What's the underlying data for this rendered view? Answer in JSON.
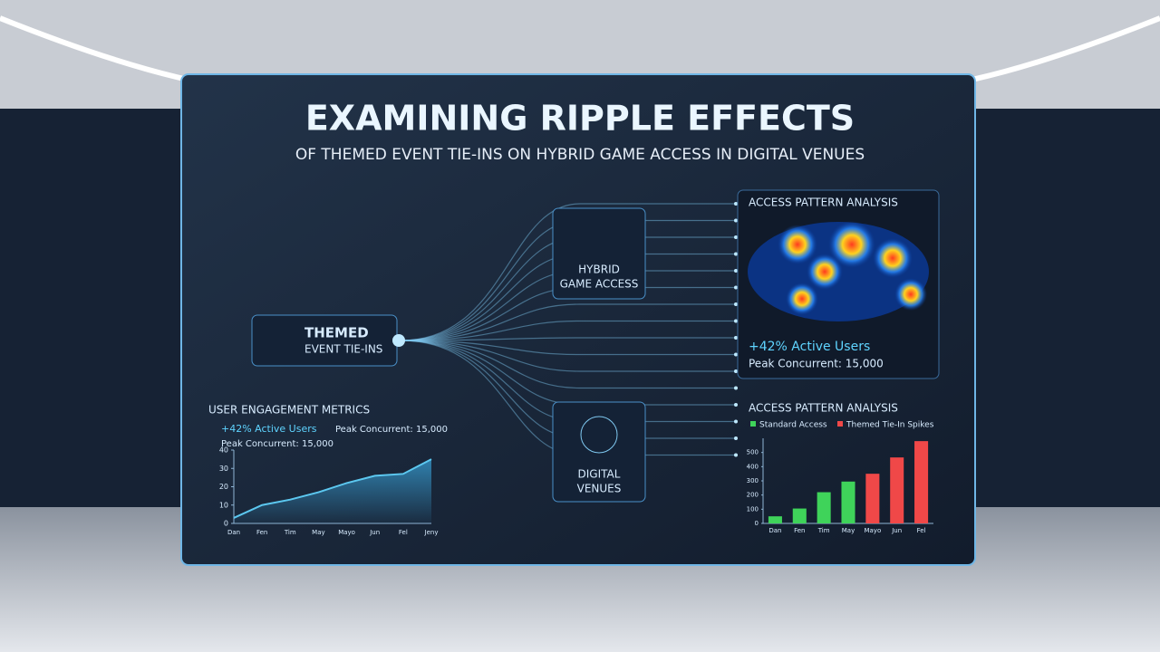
{
  "header": {
    "title": "EXAMINING RIPPLE EFFECTS",
    "subtitle": "OF THEMED EVENT TIE-INS ON HYBRID GAME ACCESS IN DIGITAL VENUES"
  },
  "nodes": [
    {
      "line1": "THEMED",
      "line2": "EVENT TIE-INS"
    },
    {
      "line1": "HYBRID",
      "line2": "GAME ACCESS"
    },
    {
      "line1": "DIGITAL",
      "line2": "VENUES"
    }
  ],
  "heatmap": {
    "title": "ACCESS PATTERN ANALYSIS",
    "stat1": "+42% Active Users",
    "stat2": "Peak Concurrent: 15,000"
  },
  "engagement": {
    "title": "USER ENGAGEMENT METRICS",
    "stat1": "+42% Active Users",
    "stat2": "Peak Concurrent: 15,000",
    "stat3": "Peak Concurrent: 15,000"
  },
  "chart_data": [
    {
      "type": "line",
      "categories": [
        "Dan",
        "Fen",
        "Tim",
        "May",
        "Mayo",
        "Jun",
        "Fel",
        "Jeny"
      ],
      "values": [
        3,
        10,
        13,
        17,
        22,
        26,
        27,
        35
      ],
      "color": "#5cc8f0",
      "ylim": [
        0,
        40
      ],
      "yticks": [
        0,
        10,
        20,
        30,
        40
      ]
    },
    {
      "type": "bar",
      "title": "ACCESS PATTERN ANALYSIS",
      "categories": [
        "Dan",
        "Fen",
        "Tim",
        "May",
        "Mayo",
        "Jun",
        "Fel"
      ],
      "series": [
        {
          "name": "Standard Access",
          "color": "#3fd35a",
          "values": [
            50,
            105,
            220,
            295,
            null,
            null,
            null
          ]
        },
        {
          "name": "Themed Tie-In Spikes",
          "color": "#f04848",
          "values": [
            null,
            null,
            null,
            null,
            350,
            465,
            580
          ]
        }
      ],
      "ylim": [
        0,
        600
      ],
      "yticks": [
        0,
        100,
        200,
        300,
        400,
        500
      ]
    }
  ]
}
